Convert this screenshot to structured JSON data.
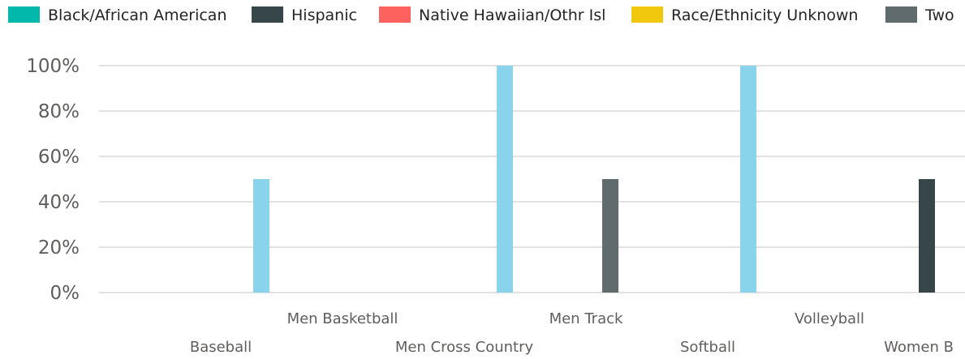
{
  "chart_data": {
    "type": "bar",
    "stacked": false,
    "legend_position": "top",
    "grid": true,
    "ylim": [
      0,
      100
    ],
    "y_ticks": [
      "0%",
      "20%",
      "40%",
      "60%",
      "80%",
      "100%"
    ],
    "y_tick_values": [
      0,
      20,
      40,
      60,
      80,
      100
    ],
    "categories": [
      "Baseball",
      "Men Basketball",
      "Men Cross Country",
      "Men Track",
      "Softball",
      "Volleyball",
      "Women B"
    ],
    "legend": [
      {
        "name": "Black/African American",
        "color": "#01B8AA"
      },
      {
        "name": "Hispanic",
        "color": "#374649"
      },
      {
        "name": "Native Hawaiian/Othr Isl",
        "color": "#FD625E"
      },
      {
        "name": "Race/Ethnicity Unknown",
        "color": "#F2C80F"
      },
      {
        "name": "Two",
        "color": "#5F6B6D"
      }
    ],
    "series": [
      {
        "key": "light-blue",
        "color": "#8AD4EB",
        "values": [
          null,
          50,
          null,
          100,
          null,
          100,
          null
        ]
      },
      {
        "key": "hispanic",
        "color": "#374649",
        "values": [
          null,
          null,
          null,
          null,
          null,
          null,
          50
        ]
      },
      {
        "key": "two",
        "color": "#5F6B6D",
        "values": [
          null,
          null,
          null,
          null,
          50,
          null,
          null
        ]
      }
    ]
  }
}
